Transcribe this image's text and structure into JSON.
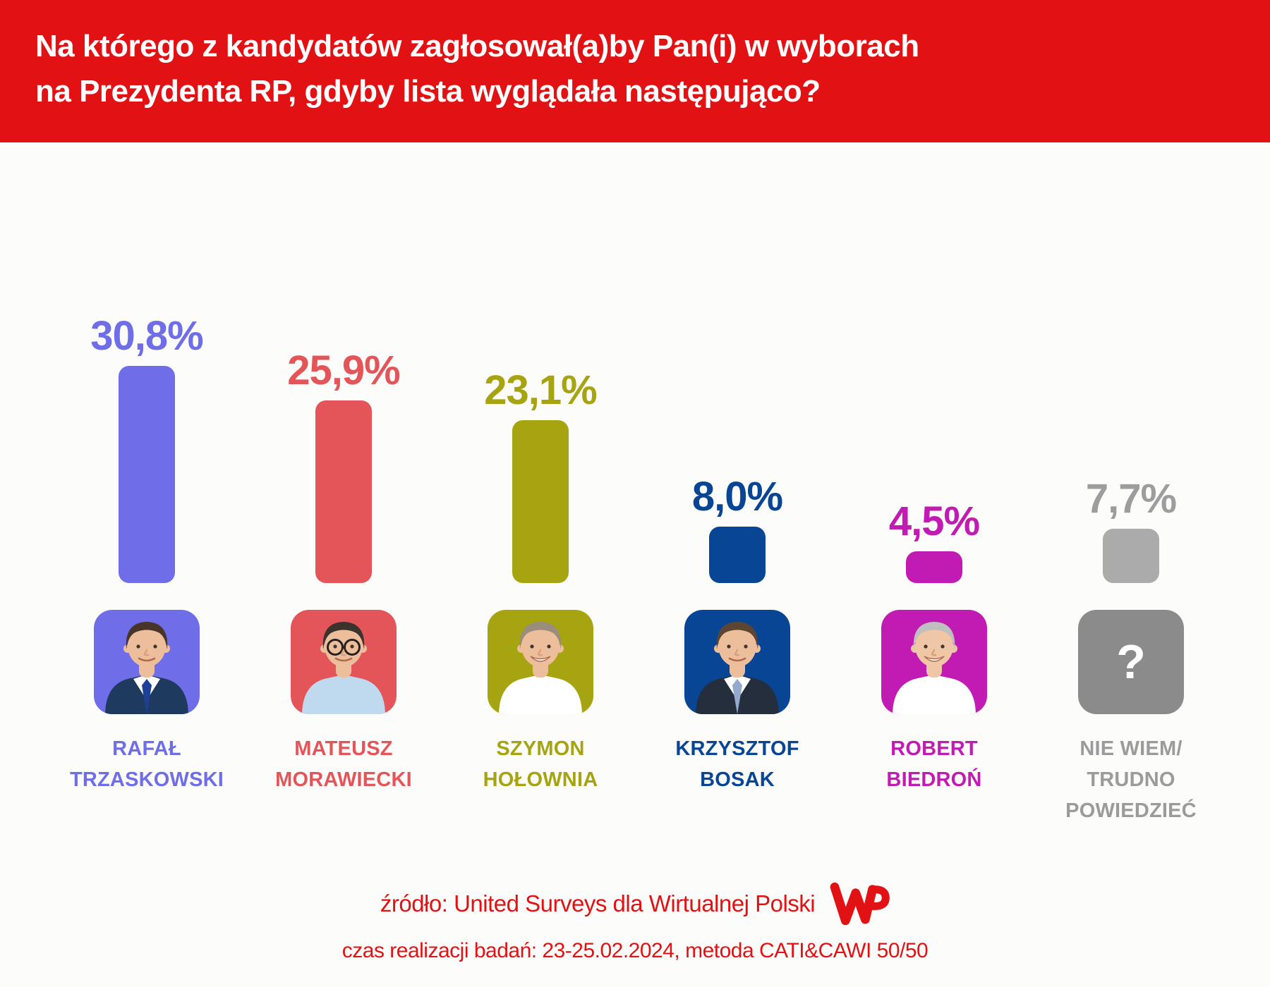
{
  "header": {
    "line1": "Na którego z kandydatów zagłosował(a)by Pan(i) w wyborach",
    "line2": "na Prezydenta RP, gdyby lista wyglądała następująco?",
    "background": "#E21113",
    "text_color": "#FFFFFF"
  },
  "chart_data": {
    "type": "bar",
    "title": "Na którego z kandydatów zagłosował(a)by Pan(i) w wyborach na Prezydenta RP, gdyby lista wyglądała następująco?",
    "categories": [
      "Rafał Trzaskowski",
      "Mateusz Morawiecki",
      "Szymon Hołownia",
      "Krzysztof Bosak",
      "Robert Biedroń",
      "Nie wiem / trudno powiedzieć"
    ],
    "values": [
      30.8,
      25.9,
      23.1,
      8.0,
      4.5,
      7.7
    ],
    "value_labels": [
      "30,8%",
      "25,9%",
      "23,1%",
      "8,0%",
      "4,5%",
      "7,7%"
    ],
    "unit": "%",
    "bar_colors": [
      "#6F6DE8",
      "#E4555A",
      "#A6A410",
      "#084695",
      "#C21BB4",
      "#ABABAB"
    ],
    "xlabel": "",
    "ylabel": "",
    "ylim": [
      0,
      35
    ],
    "grid": false,
    "legend": "none"
  },
  "candidates": [
    {
      "value": 30.8,
      "value_label": "30,8%",
      "name": "RAFAŁ\nTRZASKOWSKI",
      "bar_color": "#6F6DE8",
      "label_color": "#6F6DE8",
      "name_color": "#6F6DE8",
      "avatar_bg": "#6F6DE8",
      "photo": {
        "type": "portrait",
        "hair": "#463528",
        "skin": "#EDBE9C",
        "shirt": "#FFFFFF",
        "jacket": "#1F3A5F",
        "tie": "#1E3F96",
        "glasses": false,
        "bigSmile": false
      }
    },
    {
      "value": 25.9,
      "value_label": "25,9%",
      "name": "MATEUSZ\nMORAWIECKI",
      "bar_color": "#E4555A",
      "label_color": "#E4555A",
      "name_color": "#E4555A",
      "avatar_bg": "#E4555A",
      "photo": {
        "type": "portrait",
        "hair": "#3B332C",
        "skin": "#EDBE9C",
        "shirt": "#BFD9EE",
        "jacket": null,
        "tie": null,
        "glasses": true,
        "bigSmile": false
      }
    },
    {
      "value": 23.1,
      "value_label": "23,1%",
      "name": "SZYMON\nHOŁOWNIA",
      "bar_color": "#A6A410",
      "label_color": "#A6A410",
      "name_color": "#A6A410",
      "avatar_bg": "#A6A410",
      "photo": {
        "type": "portrait",
        "hair": "#9A8D7B",
        "skin": "#EDBE9C",
        "shirt": "#FFFFFF",
        "jacket": null,
        "tie": null,
        "glasses": false,
        "bigSmile": true
      }
    },
    {
      "value": 8.0,
      "value_label": "8,0%",
      "name": "KRZYSZTOF\nBOSAK",
      "bar_color": "#084695",
      "label_color": "#084695",
      "name_color": "#084695",
      "avatar_bg": "#084695",
      "photo": {
        "type": "portrait",
        "hair": "#5C4631",
        "skin": "#EDBE9C",
        "shirt": "#FFFFFF",
        "jacket": "#252E3D",
        "tie": "#93A9CD",
        "glasses": false,
        "bigSmile": false
      }
    },
    {
      "value": 4.5,
      "value_label": "4,5%",
      "name": "ROBERT\nBIEDROŃ",
      "bar_color": "#C21BB4",
      "label_color": "#C21BB4",
      "name_color": "#C21BB4",
      "avatar_bg": "#C21BB4",
      "photo": {
        "type": "portrait",
        "hair": "#BFBFBF",
        "skin": "#EFC6A6",
        "shirt": "#FFFFFF",
        "jacket": null,
        "tie": null,
        "glasses": false,
        "bigSmile": true
      }
    },
    {
      "value": 7.7,
      "value_label": "7,7%",
      "name": "NIE WIEM/\nTRUDNO\nPOWIEDZIEĆ",
      "bar_color": "#ABABAB",
      "label_color": "#9D9D9D",
      "name_color": "#9B9B9B",
      "avatar_bg": "#8B8B8B",
      "photo": {
        "type": "question-mark",
        "glyph": "?",
        "glyph_color": "#FFFFFF"
      }
    }
  ],
  "footer": {
    "source": "źródło: United Surveys dla Wirtualnej Polski",
    "details": "czas realizacji badań: 23-25.02.2024, metoda CATI&CAWI 50/50",
    "logo": "WP",
    "color": "#E21113"
  }
}
